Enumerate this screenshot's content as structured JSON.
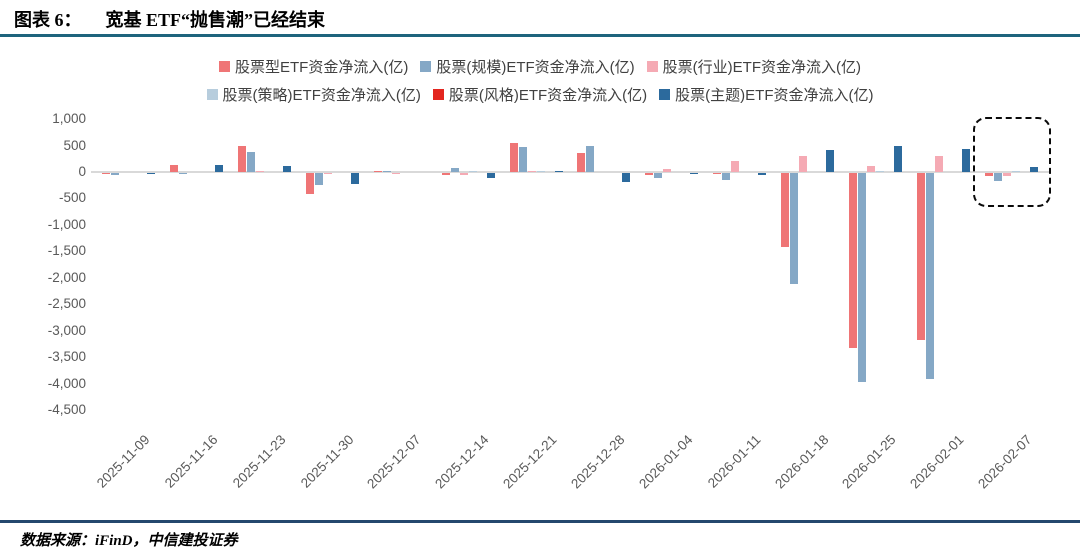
{
  "header": {
    "figure_label": "图表 6：",
    "title": "宽基 ETF“抛售潮”已经结束"
  },
  "footer": {
    "text": "数据来源：iFinD，中信建投证券"
  },
  "colors": {
    "top_rule": "#1e647d",
    "bottom_rule": "#24486e",
    "zero_line": "#d9d9d9",
    "axis_text": "#595959",
    "legend_text": "#404040",
    "highlight_border": "#0a0a0a"
  },
  "chart_data": {
    "type": "bar",
    "title": "",
    "xlabel": "",
    "ylabel": "",
    "grid": false,
    "legend_position": "top",
    "ylim": [
      -4500,
      1000
    ],
    "ytick_step": 500,
    "ytick_labels": [
      "1,000",
      "500",
      "0",
      "-500",
      "-1,000",
      "-1,500",
      "-2,000",
      "-2,500",
      "-3,000",
      "-3,500",
      "-4,000",
      "-4,500"
    ],
    "categories": [
      "2025-11-09",
      "2025-11-16",
      "2025-11-23",
      "2025-11-30",
      "2025-12-07",
      "2025-12-14",
      "2025-12-21",
      "2025-12-28",
      "2026-01-04",
      "2026-01-11",
      "2026-01-18",
      "2026-01-25",
      "2026-02-01",
      "2026-02-07"
    ],
    "series": [
      {
        "name": "股票型ETF资金净流入(亿)",
        "color": "#ef7576",
        "values": [
          -15,
          130,
          500,
          -400,
          10,
          -30,
          550,
          350,
          -40,
          -20,
          -1400,
          -3300,
          -3150,
          -60
        ]
      },
      {
        "name": "股票(规模)ETF资金净流入(亿)",
        "color": "#85a8c6",
        "values": [
          -30,
          -20,
          380,
          -230,
          25,
          70,
          480,
          500,
          -100,
          -130,
          -2100,
          -3950,
          -3900,
          -160
        ]
      },
      {
        "name": "股票(行业)ETF资金净流入(亿)",
        "color": "#f5aab4",
        "values": [
          0,
          0,
          10,
          -25,
          -15,
          -30,
          10,
          0,
          60,
          200,
          300,
          110,
          300,
          -50
        ]
      },
      {
        "name": "股票(策略)ETF资金净流入(亿)",
        "color": "#b7cddd",
        "values": [
          0,
          0,
          0,
          0,
          0,
          20,
          10,
          0,
          0,
          0,
          0,
          25,
          0,
          10
        ]
      },
      {
        "name": "股票(风格)ETF资金净流入(亿)",
        "color": "#e3261f",
        "values": [
          0,
          0,
          0,
          0,
          0,
          0,
          0,
          0,
          0,
          0,
          0,
          0,
          0,
          0
        ]
      },
      {
        "name": "股票(主题)ETF资金净流入(亿)",
        "color": "#2c6a9d",
        "values": [
          -10,
          140,
          110,
          -200,
          0,
          -100,
          20,
          -170,
          -20,
          -30,
          420,
          490,
          430,
          100
        ]
      }
    ],
    "annotation": {
      "type": "dashed-box",
      "category": "2026-02-07"
    }
  }
}
